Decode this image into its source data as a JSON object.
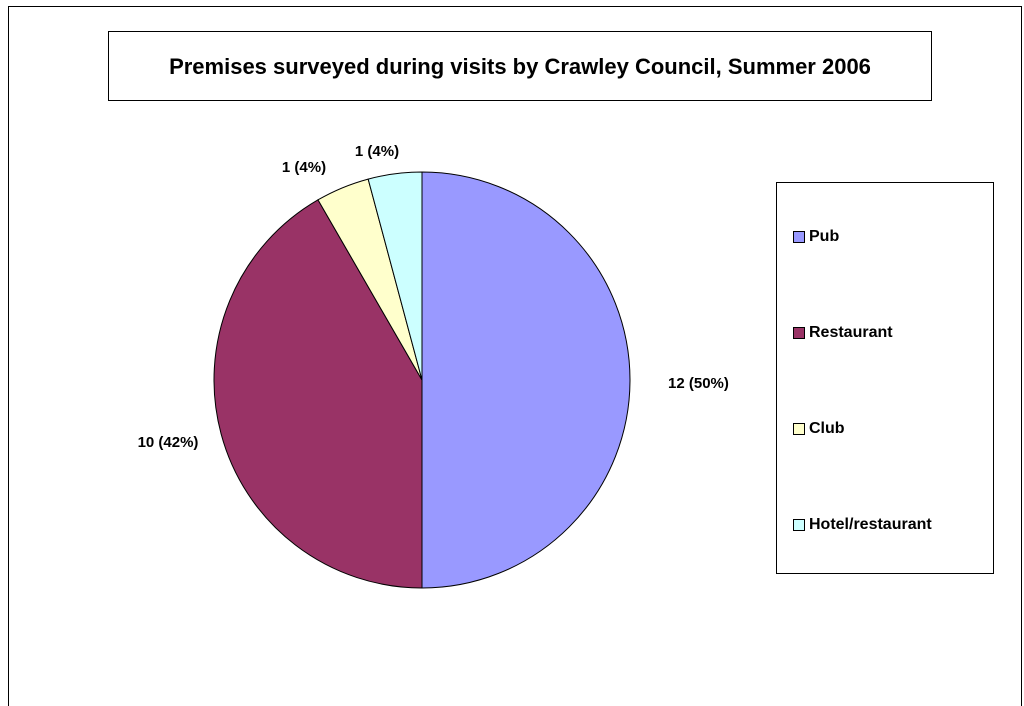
{
  "chart_data": {
    "type": "pie",
    "title": "Premises surveyed during visits by Crawley Council, Summer 2006",
    "categories": [
      "Pub",
      "Restaurant",
      "Club",
      "Hotel/restaurant"
    ],
    "values": [
      12,
      10,
      1,
      1
    ],
    "data_labels": [
      "12 (50%)",
      "10 (42%)",
      "1 (4%)",
      "1  (4%)"
    ],
    "colors": [
      "#9999ff",
      "#993366",
      "#ffffcc",
      "#ccffff"
    ],
    "legend": {
      "position": "right",
      "entries": [
        "Pub",
        "Restaurant",
        "Club",
        "Hotel/restaurant"
      ]
    }
  }
}
